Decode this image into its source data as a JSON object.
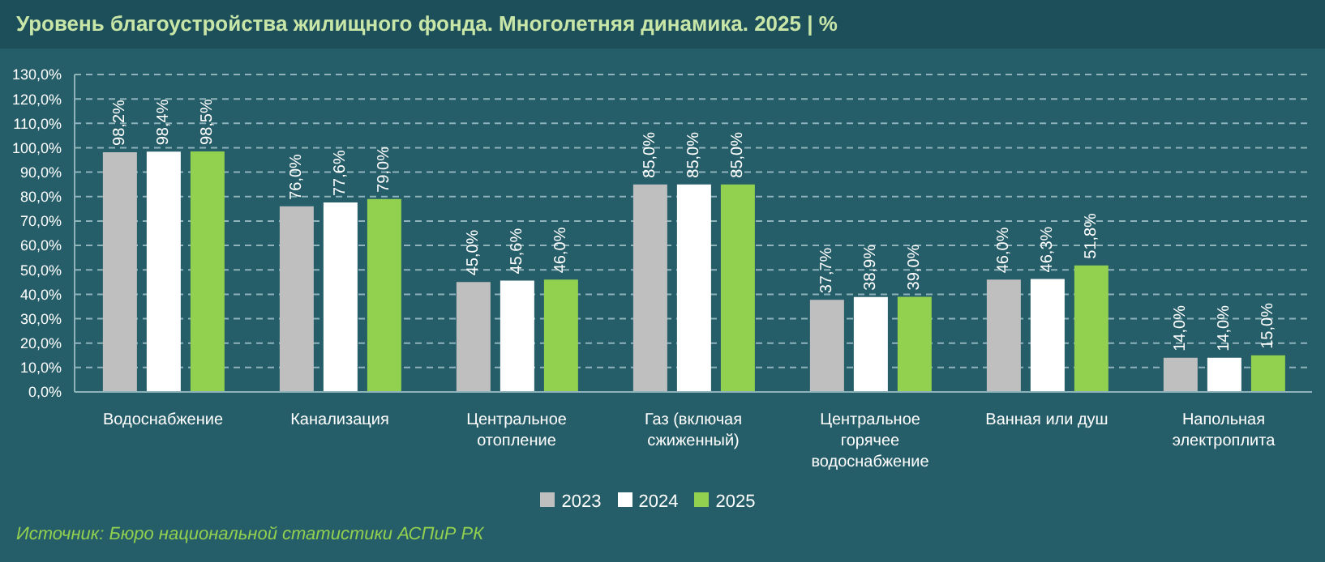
{
  "chart_data": {
    "type": "bar",
    "title": "Уровень благоустройства жилищного фонда. Многолетняя динамика. 2025 | %",
    "categories": [
      "Водоснабжение",
      "Канализация",
      "Центральное отопление",
      "Газ (включая сжиженный)",
      "Центральное горячее водоснабжение",
      "Ванная или душ",
      "Напольная электроплита"
    ],
    "series": [
      {
        "name": "2023",
        "color": "#bfbfbf",
        "values": [
          98.2,
          76.0,
          45.0,
          85.0,
          37.7,
          46.0,
          14.0
        ],
        "value_labels": [
          "98,2%",
          "76,0%",
          "45,0%",
          "85,0%",
          "37,7%",
          "46,0%",
          "14,0%"
        ]
      },
      {
        "name": "2024",
        "color": "#ffffff",
        "values": [
          98.4,
          77.6,
          45.6,
          85.0,
          38.9,
          46.3,
          14.0
        ],
        "value_labels": [
          "98,4%",
          "77,6%",
          "45,6%",
          "85,0%",
          "38,9%",
          "46,3%",
          "14,0%"
        ]
      },
      {
        "name": "2025",
        "color": "#92d050",
        "values": [
          98.5,
          79.0,
          46.0,
          85.0,
          39.0,
          51.8,
          15.0
        ],
        "value_labels": [
          "98,5%",
          "79,0%",
          "46,0%",
          "85,0%",
          "39,0%",
          "51,8%",
          "15,0%"
        ]
      }
    ],
    "ylim": [
      0,
      130
    ],
    "yticks": [
      {
        "value": 0,
        "label": "0,0%"
      },
      {
        "value": 10,
        "label": "10,0%"
      },
      {
        "value": 20,
        "label": "20,0%"
      },
      {
        "value": 30,
        "label": "30,0%"
      },
      {
        "value": 40,
        "label": "40,0%"
      },
      {
        "value": 50,
        "label": "50,0%"
      },
      {
        "value": 60,
        "label": "60,0%"
      },
      {
        "value": 70,
        "label": "70,0%"
      },
      {
        "value": 80,
        "label": "80,0%"
      },
      {
        "value": 90,
        "label": "90,0%"
      },
      {
        "value": 100,
        "label": "100,0%"
      },
      {
        "value": 110,
        "label": "110,0%"
      },
      {
        "value": 120,
        "label": "120,0%"
      },
      {
        "value": 130,
        "label": "130,0%"
      }
    ],
    "grid": "y",
    "legend": "bottom",
    "annotations": [
      "Источник: Бюро национальной статистики АСПиР РК"
    ]
  }
}
